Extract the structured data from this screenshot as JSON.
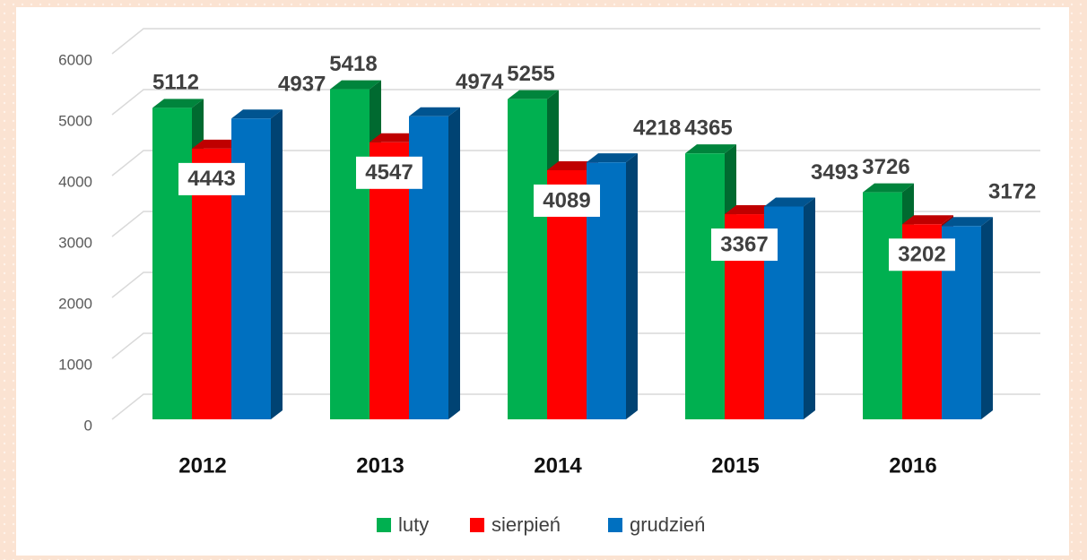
{
  "chart_data": {
    "type": "bar3d",
    "categories": [
      "2012",
      "2013",
      "2014",
      "2015",
      "2016"
    ],
    "series": [
      {
        "name": "luty",
        "color": "#00b050",
        "values": [
          5112,
          5418,
          5255,
          4365,
          3726
        ]
      },
      {
        "name": "sierpień",
        "color": "#ff0000",
        "values": [
          4443,
          4547,
          4089,
          3367,
          3202
        ]
      },
      {
        "name": "grudzień",
        "color": "#0070c0",
        "values": [
          4937,
          4974,
          4218,
          3493,
          3172
        ]
      }
    ],
    "ylim": [
      0,
      6000
    ],
    "yticks": [
      0,
      1000,
      2000,
      3000,
      4000,
      5000,
      6000
    ],
    "grid": true,
    "legend": "bottom"
  }
}
